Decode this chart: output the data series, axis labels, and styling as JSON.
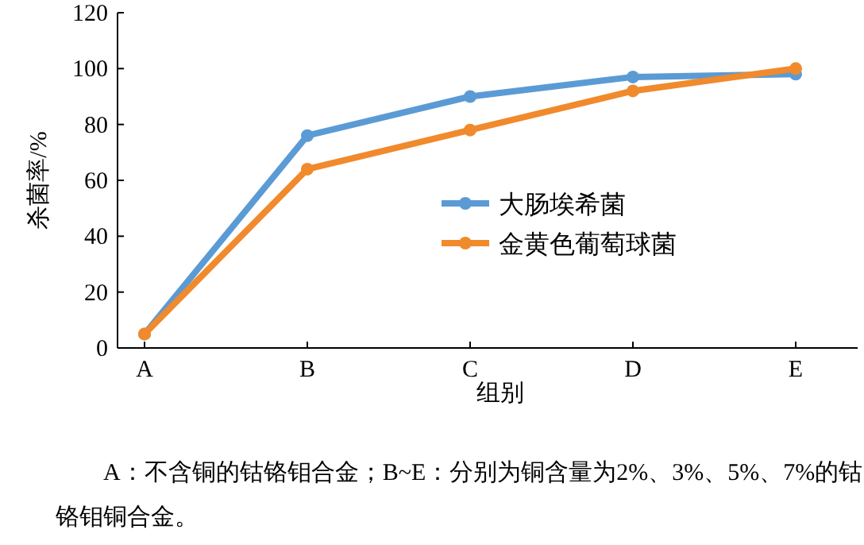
{
  "chart_data": {
    "type": "line",
    "xlabel": "组别",
    "ylabel": "杀菌率/%",
    "categories": [
      "A",
      "B",
      "C",
      "D",
      "E"
    ],
    "series": [
      {
        "name": "大肠埃希菌",
        "color": "#5b9bd5",
        "values": [
          5,
          76,
          90,
          97,
          98
        ]
      },
      {
        "name": "金黄色葡萄球菌",
        "color": "#f08a2c",
        "values": [
          5,
          64,
          78,
          92,
          100
        ]
      }
    ],
    "ylim": [
      0,
      120
    ],
    "yticks": [
      0,
      20,
      40,
      60,
      80,
      100,
      120
    ],
    "marker": "circle",
    "legend": "right",
    "grid": false,
    "annotations": [
      "A：不含铜的钴铬钼合金；B~E：分别为铜含量为2%、3%、5%、7%的钴铬钼铜合金。"
    ]
  }
}
